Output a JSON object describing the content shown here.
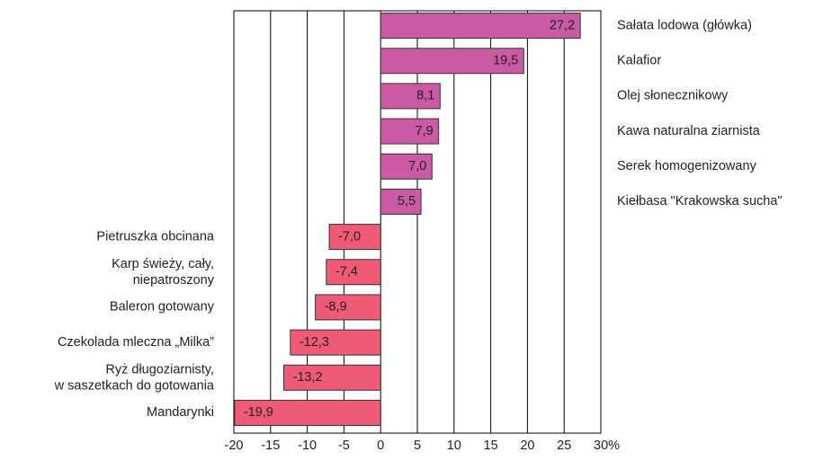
{
  "chart_data": {
    "type": "hbar",
    "categories": [
      "Sałata lodowa (główka)",
      "Kalafior",
      "Olej słonecznikowy",
      "Kawa naturalna ziarnista",
      "Serek homogenizowany",
      "Kiełbasa \"Krakowska sucha\"",
      "Pietruszka obcinana",
      "Karp świeży, cały,\nniepatroszony",
      "Baleron gotowany",
      "Czekolada mleczna „Milka”",
      "Ryż długoziarnisty,\nw saszetkach do gotowania",
      "Mandarynki"
    ],
    "values": [
      27.2,
      19.5,
      8.1,
      7.9,
      7.0,
      5.5,
      -7.0,
      -7.4,
      -8.9,
      -12.3,
      -13.2,
      -19.9
    ],
    "value_labels": [
      "27,2",
      "19,5",
      "8,1",
      "7,9",
      "7,0",
      "5,5",
      "-7,0",
      "-7,4",
      "-8,9",
      "-12,3",
      "-13,2",
      "-19,9"
    ],
    "positive_color": "#c95aa3",
    "negative_color": "#ef5b74",
    "xlim": [
      -20,
      30
    ],
    "xticks": [
      -20,
      -15,
      -10,
      -5,
      0,
      5,
      10,
      15,
      20,
      25,
      {
        "value": 30,
        "label": "30%"
      }
    ],
    "grid": true
  }
}
